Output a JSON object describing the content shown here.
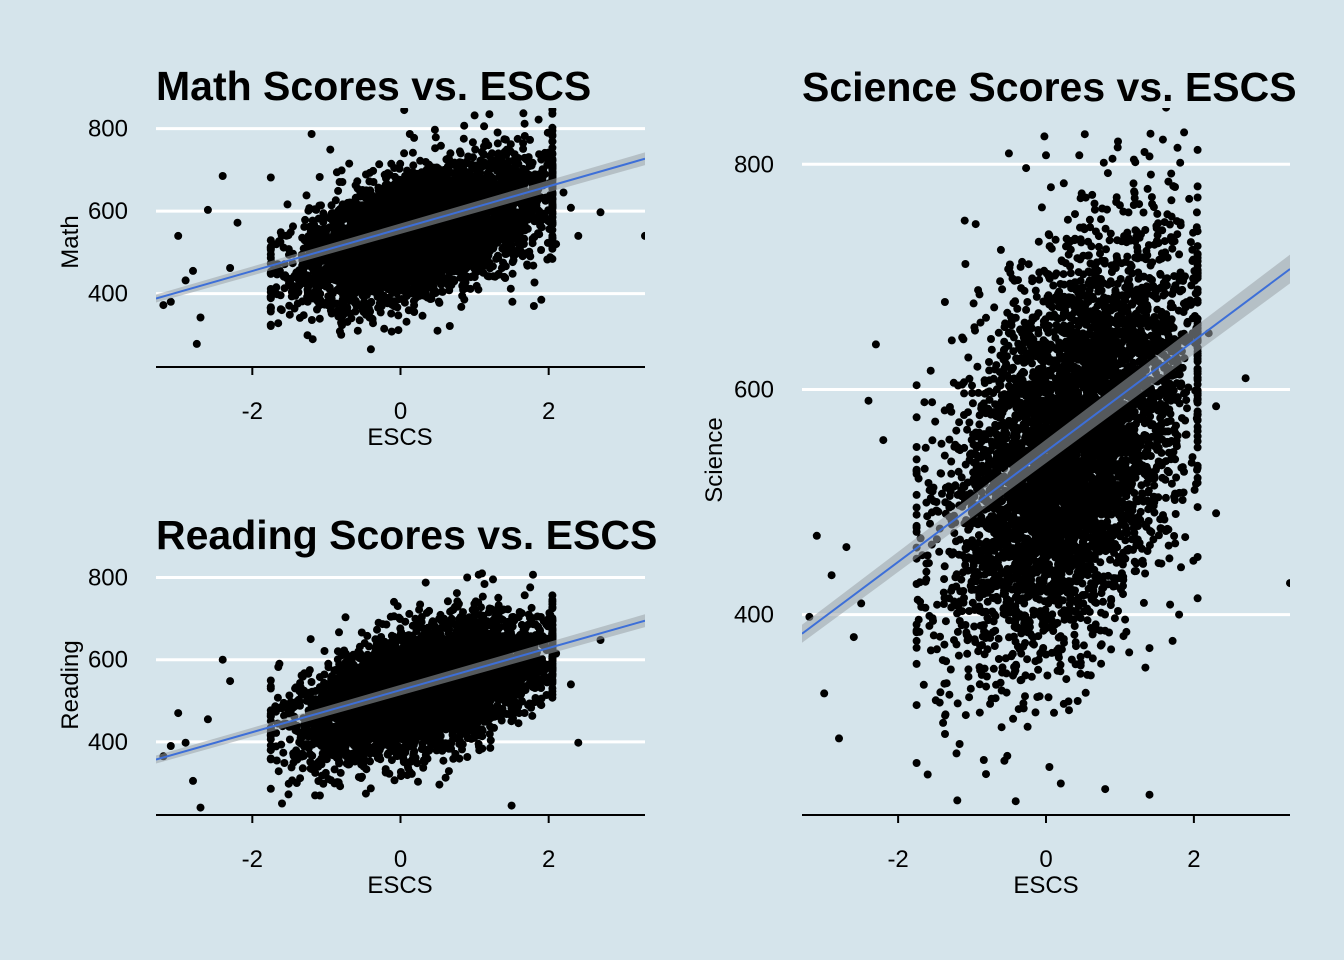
{
  "background_color": "#d5e4eb",
  "point_color": "#000000",
  "trend_color": "#3d6fd8",
  "band_color": "#9aa3a8",
  "grid_color": "#ffffff",
  "chart_data": [
    {
      "type": "scatter",
      "title": "Math Scores vs. ESCS",
      "xlabel": "ESCS",
      "ylabel": "Math",
      "xlim": [
        -3.3,
        3.3
      ],
      "ylim": [
        222,
        850
      ],
      "x_ticks": [
        -2,
        0,
        2
      ],
      "x_tick_labels": [
        "-2",
        "0",
        "2"
      ],
      "y_ticks": [
        400,
        600,
        800
      ],
      "y_tick_labels": [
        "400",
        "600",
        "800"
      ],
      "grid": "horizontal",
      "trend": {
        "x": [
          -3.3,
          3.3
        ],
        "y": [
          388,
          727
        ]
      },
      "cloud": {
        "n": 5200,
        "center_x": 0.3,
        "sd_x": 0.78,
        "center_y": 553,
        "slope": 53,
        "sd_y": 70,
        "seed": 11
      },
      "points": [
        [
          -3.1,
          380
        ],
        [
          -2.9,
          432
        ],
        [
          -2.7,
          342
        ],
        [
          -2.75,
          278
        ],
        [
          -2.8,
          455
        ],
        [
          -2.4,
          685
        ],
        [
          -2.6,
          603
        ],
        [
          -2.2,
          572
        ],
        [
          -2.3,
          462
        ],
        [
          -3.2,
          372
        ],
        [
          -3.0,
          540
        ],
        [
          2.7,
          597
        ],
        [
          3.3,
          540
        ],
        [
          2.4,
          540
        ],
        [
          2.1,
          520
        ],
        [
          2.2,
          645
        ],
        [
          2.3,
          608
        ],
        [
          1.9,
          725
        ],
        [
          1.2,
          835
        ],
        [
          1.0,
          832
        ],
        [
          0.05,
          845
        ],
        [
          1.9,
          385
        ],
        [
          1.8,
          370
        ],
        [
          -0.8,
          300
        ],
        [
          -0.4,
          265
        ],
        [
          0.5,
          310
        ],
        [
          -1.2,
          787
        ]
      ]
    },
    {
      "type": "scatter",
      "title": "Reading Scores vs. ESCS",
      "xlabel": "ESCS",
      "ylabel": "Reading",
      "xlim": [
        -3.3,
        3.3
      ],
      "ylim": [
        222,
        850
      ],
      "x_ticks": [
        -2,
        0,
        2
      ],
      "x_tick_labels": [
        "-2",
        "0",
        "2"
      ],
      "y_ticks": [
        400,
        600,
        800
      ],
      "y_tick_labels": [
        "400",
        "600",
        "800"
      ],
      "grid": "horizontal",
      "trend": {
        "x": [
          -3.3,
          3.3
        ],
        "y": [
          357,
          695
        ]
      },
      "cloud": {
        "n": 5200,
        "center_x": 0.3,
        "sd_x": 0.78,
        "center_y": 527,
        "slope": 50,
        "sd_y": 68,
        "seed": 23
      },
      "points": [
        [
          -3.1,
          390
        ],
        [
          -2.9,
          398
        ],
        [
          -2.8,
          305
        ],
        [
          -2.7,
          240
        ],
        [
          -2.4,
          600
        ],
        [
          -2.6,
          455
        ],
        [
          -2.3,
          548
        ],
        [
          -3.2,
          365
        ],
        [
          -3.0,
          470
        ],
        [
          2.7,
          648
        ],
        [
          2.4,
          398
        ],
        [
          2.3,
          540
        ],
        [
          2.1,
          615
        ],
        [
          1.1,
          810
        ],
        [
          0.9,
          800
        ],
        [
          1.5,
          245
        ],
        [
          1.8,
          565
        ],
        [
          -1.6,
          250
        ],
        [
          -1.4,
          300
        ],
        [
          2.0,
          700
        ]
      ]
    },
    {
      "type": "scatter",
      "title": "Science Scores vs. ESCS",
      "xlabel": "ESCS",
      "ylabel": "Science",
      "xlim": [
        -3.3,
        3.3
      ],
      "ylim": [
        222,
        850
      ],
      "x_ticks": [
        -2,
        0,
        2
      ],
      "x_tick_labels": [
        "-2",
        "0",
        "2"
      ],
      "y_ticks": [
        400,
        600,
        800
      ],
      "y_tick_labels": [
        "400",
        "600",
        "800"
      ],
      "grid": "horizontal",
      "trend": {
        "x": [
          -3.3,
          3.3
        ],
        "y": [
          383,
          707
        ]
      },
      "cloud": {
        "n": 5200,
        "center_x": 0.3,
        "sd_x": 0.78,
        "center_y": 547,
        "slope": 49,
        "sd_y": 80,
        "seed": 37
      },
      "points": [
        [
          -3.1,
          470
        ],
        [
          -2.9,
          435
        ],
        [
          -2.8,
          290
        ],
        [
          -3.0,
          330
        ],
        [
          -2.6,
          380
        ],
        [
          -2.3,
          640
        ],
        [
          -2.4,
          590
        ],
        [
          -2.2,
          555
        ],
        [
          -2.7,
          460
        ],
        [
          -2.5,
          410
        ],
        [
          -3.2,
          398
        ],
        [
          -1.6,
          258
        ],
        [
          -1.2,
          235
        ],
        [
          -1.1,
          750
        ],
        [
          -0.6,
          300
        ],
        [
          2.7,
          610
        ],
        [
          3.3,
          428
        ],
        [
          2.3,
          490
        ],
        [
          2.3,
          585
        ],
        [
          2.2,
          650
        ],
        [
          1.8,
          720
        ],
        [
          1.4,
          807
        ],
        [
          0.0,
          808
        ],
        [
          0.8,
          245
        ],
        [
          1.4,
          240
        ],
        [
          1.2,
          770
        ],
        [
          0.45,
          808
        ],
        [
          0.9,
          805
        ],
        [
          1.8,
          400
        ],
        [
          1.9,
          560
        ],
        [
          -0.5,
          395
        ],
        [
          0.2,
          250
        ]
      ]
    }
  ]
}
